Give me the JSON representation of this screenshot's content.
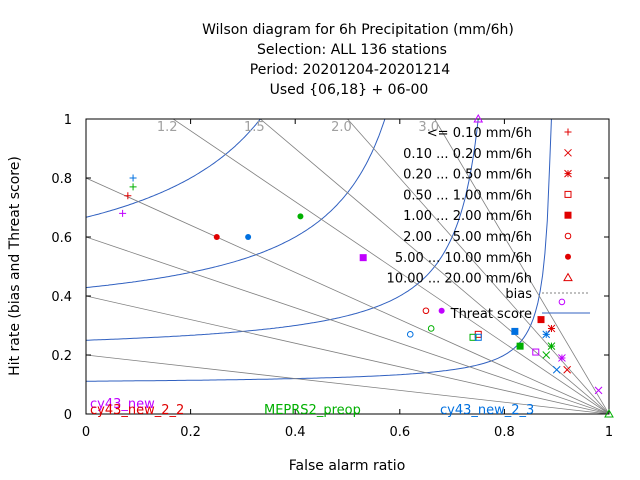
{
  "chart_data": {
    "type": "scatter",
    "title_lines": [
      "Wilson diagram  for 6h Precipitation (mm/6h)",
      "Selection: ALL    136 stations",
      "Period: 20201204-20201214",
      "Used {06,18} + 06-00"
    ],
    "xlabel": "False alarm ratio",
    "ylabel": "Hit rate (bias and Threat score)",
    "xlim": [
      0,
      1
    ],
    "ylim": [
      0,
      1
    ],
    "x_ticks": [
      "0",
      "0.2",
      "0.4",
      "0.6",
      "0.8",
      "1"
    ],
    "y_ticks": [
      "0",
      "0.2",
      "0.4",
      "0.6",
      "0.8",
      "1"
    ],
    "bias_lines": [
      {
        "value": 1.2,
        "label": "1.2"
      },
      {
        "value": 1.5,
        "label": "1.5"
      },
      {
        "value": 2.0,
        "label": "2.0"
      },
      {
        "value": 3.0,
        "label": "3.0"
      },
      {
        "value": 0.8,
        "label": ""
      },
      {
        "value": 0.6,
        "label": ""
      },
      {
        "value": 0.4,
        "label": ""
      },
      {
        "value": 0.2,
        "label": ""
      }
    ],
    "threat_score_levels": [
      0.1,
      0.2,
      0.3,
      0.4,
      0.5,
      0.6,
      0.7,
      0.8,
      0.9
    ],
    "thresholds": [
      {
        "label": "<= 0.10 mm/6h",
        "symbol": "plus"
      },
      {
        "label": "0.10 ... 0.20 mm/6h",
        "symbol": "cross"
      },
      {
        "label": "0.20 ... 0.50 mm/6h",
        "symbol": "star"
      },
      {
        "label": "0.50 ... 1.00 mm/6h",
        "symbol": "open-square"
      },
      {
        "label": "1.00 ... 2.00 mm/6h",
        "symbol": "filled-square"
      },
      {
        "label": "2.00 ... 5.00 mm/6h",
        "symbol": "open-circle"
      },
      {
        "label": "5.00 ... 10.00 mm/6h",
        "symbol": "filled-circle"
      },
      {
        "label": "10.00 ... 20.00 mm/6h",
        "symbol": "open-triangle"
      }
    ],
    "legend_lines": [
      {
        "label": "bias",
        "style": "dotted"
      },
      {
        "label": "Threat score",
        "style": "solid"
      }
    ],
    "series": [
      {
        "name": "cy43_new",
        "color": "#c000ff",
        "points": [
          [
            0.07,
            0.68
          ],
          [
            0.98,
            0.08
          ],
          [
            0.91,
            0.19
          ],
          [
            0.86,
            0.21
          ],
          [
            0.53,
            0.53
          ],
          [
            0.91,
            0.38
          ],
          [
            0.68,
            0.35
          ],
          [
            0.75,
            1.0
          ]
        ]
      },
      {
        "name": "cy43_new_2_2",
        "color": "#e00000",
        "points": [
          [
            0.08,
            0.74
          ],
          [
            0.92,
            0.15
          ],
          [
            0.89,
            0.29
          ],
          [
            0.75,
            0.27
          ],
          [
            0.87,
            0.32
          ],
          [
            0.65,
            0.35
          ],
          [
            0.25,
            0.6
          ]
        ]
      },
      {
        "name": "MEPRS2_preop",
        "color": "#00b000",
        "points": [
          [
            0.09,
            0.77
          ],
          [
            0.88,
            0.2
          ],
          [
            0.89,
            0.23
          ],
          [
            0.74,
            0.26
          ],
          [
            0.83,
            0.23
          ],
          [
            0.66,
            0.29
          ],
          [
            0.41,
            0.67
          ],
          [
            1.0,
            0.0
          ]
        ]
      },
      {
        "name": "cy43_new_2_3",
        "color": "#0070e0",
        "points": [
          [
            0.09,
            0.8
          ],
          [
            0.9,
            0.15
          ],
          [
            0.88,
            0.27
          ],
          [
            0.75,
            0.26
          ],
          [
            0.82,
            0.28
          ],
          [
            0.62,
            0.27
          ],
          [
            0.31,
            0.6
          ]
        ]
      }
    ]
  }
}
